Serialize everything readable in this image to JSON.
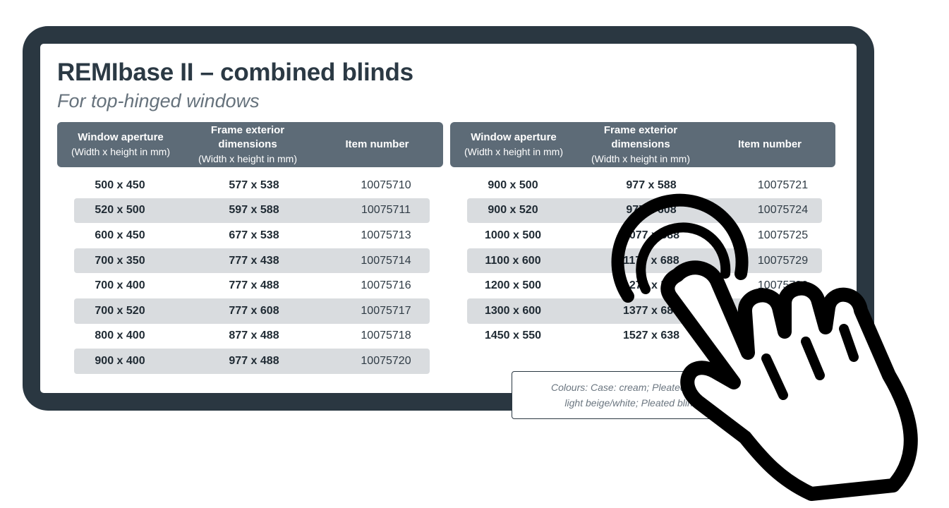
{
  "title": "REMIbase II – combined blinds",
  "subtitle": "For top-hinged windows",
  "headers": {
    "col1_line1": "Window aperture",
    "col1_line2": "(Width x height in mm)",
    "col2_line1": "Frame exterior dimensions",
    "col2_line2": "(Width x height in mm)",
    "col3": "Item number"
  },
  "left_rows": [
    {
      "aperture": "500 x 450",
      "frame": "577 x 538",
      "item": "10075710"
    },
    {
      "aperture": "520 x 500",
      "frame": "597 x 588",
      "item": "10075711"
    },
    {
      "aperture": "600 x 450",
      "frame": "677 x 538",
      "item": "10075713"
    },
    {
      "aperture": "700 x 350",
      "frame": "777 x 438",
      "item": "10075714"
    },
    {
      "aperture": "700 x 400",
      "frame": "777 x 488",
      "item": "10075716"
    },
    {
      "aperture": "700 x 520",
      "frame": "777 x 608",
      "item": "10075717"
    },
    {
      "aperture": "800 x 400",
      "frame": "877 x 488",
      "item": "10075718"
    },
    {
      "aperture": "900 x 400",
      "frame": "977 x 488",
      "item": "10075720"
    }
  ],
  "right_rows": [
    {
      "aperture": "900 x 500",
      "frame": "977 x 588",
      "item": "10075721"
    },
    {
      "aperture": "900 x 520",
      "frame": "977 x 608",
      "item": "10075724"
    },
    {
      "aperture": "1000 x 500",
      "frame": "1077 x 588",
      "item": "10075725"
    },
    {
      "aperture": "1100 x 600",
      "frame": "1177 x 688",
      "item": "10075729"
    },
    {
      "aperture": "1200 x 500",
      "frame": "1277 x 588",
      "item": "10075730"
    },
    {
      "aperture": "1300 x 600",
      "frame": "1377 x 688",
      "item": ""
    },
    {
      "aperture": "1450 x 550",
      "frame": "1527 x 638",
      "item": ""
    }
  ],
  "note": {
    "line1": "Colours: Case: cream; Pleated blind:",
    "line2": "light beige/white; Pleated blind"
  },
  "icons": {
    "pointer": "tap-hand-icon"
  }
}
